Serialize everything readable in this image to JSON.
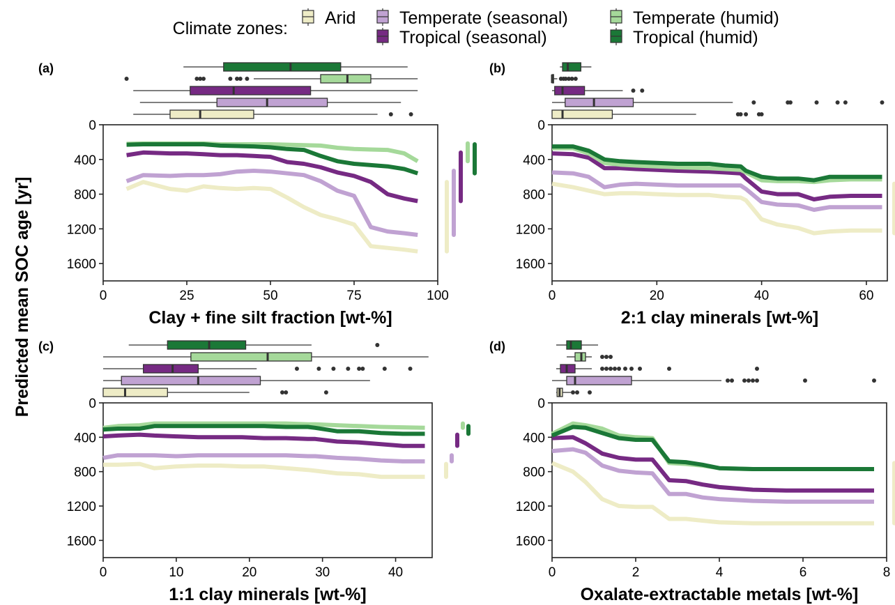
{
  "legend": {
    "title": "Climate zones:",
    "items": [
      {
        "key": "arid",
        "label": "Arid",
        "color": "#eeecc6"
      },
      {
        "key": "temperate_seasonal",
        "label": "Temperate (seasonal)",
        "color": "#c0a2d2"
      },
      {
        "key": "temperate_humid",
        "label": "Temperate (humid)",
        "color": "#a5d99a"
      },
      {
        "key": "tropical_seasonal",
        "label": "Tropical (seasonal)",
        "color": "#762a83"
      },
      {
        "key": "tropical_humid",
        "label": "Tropical (humid)",
        "color": "#1b7837"
      }
    ]
  },
  "shared_ylabel": "Predicted mean SOC age [yr]",
  "chart_data": [
    {
      "type": "line",
      "panel": "(a)",
      "xlabel": "Clay + fine silt fraction [wt-%]",
      "ylabel": "Predicted mean SOC age [yr]",
      "xlim": [
        0,
        100
      ],
      "ylim": [
        1800,
        0
      ],
      "y_inverted": true,
      "xticks": [
        "0",
        "25",
        "50",
        "75",
        "100"
      ],
      "yticks": [
        "0",
        "400",
        "800",
        "1200",
        "1600"
      ],
      "x": [
        7,
        12,
        20,
        25,
        30,
        35,
        40,
        45,
        50,
        55,
        60,
        65,
        70,
        75,
        80,
        85,
        90,
        94
      ],
      "series": [
        {
          "name": "Arid",
          "values": [
            740,
            660,
            740,
            760,
            710,
            730,
            740,
            730,
            740,
            840,
            950,
            1040,
            1090,
            1150,
            1400,
            1420,
            1440,
            1460
          ]
        },
        {
          "name": "Temperate (seasonal)",
          "values": [
            650,
            580,
            590,
            580,
            580,
            570,
            540,
            530,
            540,
            560,
            580,
            650,
            760,
            820,
            1180,
            1230,
            1250,
            1270
          ]
        },
        {
          "name": "Temperate (humid)",
          "values": [
            220,
            215,
            215,
            215,
            215,
            225,
            225,
            225,
            225,
            230,
            235,
            240,
            265,
            280,
            285,
            290,
            330,
            420
          ]
        },
        {
          "name": "Tropical (seasonal)",
          "values": [
            350,
            320,
            330,
            330,
            340,
            350,
            350,
            360,
            370,
            430,
            450,
            490,
            550,
            590,
            660,
            800,
            850,
            880
          ]
        },
        {
          "name": "Tropical (humid)",
          "values": [
            230,
            225,
            225,
            225,
            225,
            240,
            245,
            250,
            260,
            280,
            290,
            360,
            420,
            450,
            465,
            480,
            510,
            560
          ]
        }
      ],
      "boxes": [
        {
          "name": "Tropical (humid)",
          "whisker_lo": 24,
          "q1": 36,
          "median": 56,
          "q3": 71,
          "whisker_hi": 91,
          "outliers": []
        },
        {
          "name": "Temperate (humid)",
          "whisker_lo": 45,
          "q1": 65,
          "median": 73,
          "q3": 80,
          "whisker_hi": 94,
          "outliers": [
            7,
            28,
            29,
            30,
            38,
            40,
            41,
            43
          ]
        },
        {
          "name": "Tropical (seasonal)",
          "whisker_lo": 9,
          "q1": 26,
          "median": 39,
          "q3": 62,
          "whisker_hi": 94,
          "outliers": []
        },
        {
          "name": "Temperate (seasonal)",
          "whisker_lo": 11,
          "q1": 34,
          "median": 49,
          "q3": 67,
          "whisker_hi": 89,
          "outliers": []
        },
        {
          "name": "Arid",
          "whisker_lo": 9,
          "q1": 20,
          "median": 29,
          "q3": 45,
          "whisker_hi": 82,
          "outliers": [
            86,
            92
          ]
        }
      ],
      "range_bars": [
        {
          "name": "Arid",
          "from": 660,
          "to": 1460
        },
        {
          "name": "Temperate (seasonal)",
          "from": 530,
          "to": 1270
        },
        {
          "name": "Tropical (seasonal)",
          "from": 320,
          "to": 880
        },
        {
          "name": "Temperate (humid)",
          "from": 215,
          "to": 420
        },
        {
          "name": "Tropical (humid)",
          "from": 225,
          "to": 560
        }
      ]
    },
    {
      "type": "line",
      "panel": "(b)",
      "xlabel": "2:1 clay minerals [wt-%]",
      "ylabel": "",
      "xlim": [
        0,
        64
      ],
      "ylim": [
        1800,
        0
      ],
      "y_inverted": true,
      "xticks": [
        "0",
        "20",
        "40",
        "60"
      ],
      "yticks": [
        "0",
        "400",
        "800",
        "1200",
        "1600"
      ],
      "x": [
        0,
        4,
        7,
        10,
        13,
        16,
        20,
        24,
        30,
        33,
        36,
        37,
        40,
        43,
        47,
        50,
        53,
        57,
        60,
        63
      ],
      "series": [
        {
          "name": "Arid",
          "values": [
            680,
            720,
            760,
            800,
            790,
            790,
            800,
            810,
            810,
            830,
            840,
            870,
            1090,
            1150,
            1190,
            1250,
            1230,
            1220,
            1220,
            1220
          ]
        },
        {
          "name": "Temperate (seasonal)",
          "values": [
            550,
            560,
            600,
            720,
            690,
            680,
            690,
            700,
            700,
            700,
            700,
            740,
            890,
            920,
            930,
            980,
            950,
            950,
            950,
            950
          ]
        },
        {
          "name": "Temperate (humid)",
          "values": [
            270,
            270,
            330,
            440,
            460,
            470,
            480,
            490,
            500,
            510,
            520,
            550,
            640,
            650,
            650,
            660,
            640,
            630,
            630,
            630
          ]
        },
        {
          "name": "Tropical (seasonal)",
          "values": [
            330,
            340,
            380,
            500,
            500,
            510,
            520,
            530,
            540,
            550,
            560,
            620,
            770,
            800,
            800,
            860,
            830,
            820,
            820,
            820
          ]
        },
        {
          "name": "Tropical (humid)",
          "values": [
            250,
            250,
            300,
            400,
            420,
            430,
            440,
            450,
            450,
            470,
            480,
            530,
            600,
            620,
            620,
            640,
            600,
            600,
            600,
            600
          ]
        }
      ],
      "boxes": [
        {
          "name": "Tropical (humid)",
          "whisker_lo": 1.5,
          "q1": 2,
          "median": 3,
          "q3": 5.5,
          "whisker_hi": 7.5,
          "outliers": []
        },
        {
          "name": "Temperate (humid)",
          "whisker_lo": 0,
          "q1": 0,
          "median": 0,
          "q3": 0.3,
          "whisker_hi": 1,
          "outliers": [
            1.7,
            2.2,
            2.6,
            3.2,
            3.8,
            4.5
          ]
        },
        {
          "name": "Tropical (seasonal)",
          "whisker_lo": 0,
          "q1": 0.5,
          "median": 2,
          "q3": 6.2,
          "whisker_hi": 13.5,
          "outliers": [
            15.5,
            17.2
          ]
        },
        {
          "name": "Temperate (seasonal)",
          "whisker_lo": 0,
          "q1": 2.5,
          "median": 8,
          "q3": 15.5,
          "whisker_hi": 34.5,
          "outliers": [
            38.5,
            45,
            45.5,
            50.5,
            54.5,
            56,
            63
          ]
        },
        {
          "name": "Arid",
          "whisker_lo": 0,
          "q1": 0,
          "median": 2,
          "q3": 11.5,
          "whisker_hi": 27.5,
          "outliers": [
            35.5,
            36,
            37,
            39.5,
            40
          ]
        }
      ],
      "range_bars": [
        {
          "name": "Arid",
          "from": 680,
          "to": 1250
        }
      ]
    },
    {
      "type": "line",
      "panel": "(c)",
      "xlabel": "1:1 clay minerals [wt-%]",
      "ylabel": "",
      "xlim": [
        0,
        45
      ],
      "ylim": [
        1800,
        0
      ],
      "y_inverted": true,
      "xticks": [
        "0",
        "10",
        "20",
        "30",
        "40"
      ],
      "yticks": [
        "0",
        "400",
        "800",
        "1200",
        "1600"
      ],
      "x": [
        0,
        2,
        5,
        7,
        10,
        13,
        16,
        19,
        22,
        25,
        28,
        29,
        32,
        35,
        38,
        41,
        44
      ],
      "series": [
        {
          "name": "Arid",
          "values": [
            720,
            720,
            710,
            760,
            740,
            730,
            730,
            740,
            740,
            760,
            780,
            790,
            820,
            830,
            860,
            860,
            860
          ]
        },
        {
          "name": "Temperate (seasonal)",
          "values": [
            640,
            610,
            610,
            610,
            620,
            610,
            610,
            610,
            610,
            610,
            620,
            620,
            640,
            650,
            670,
            680,
            680
          ]
        },
        {
          "name": "Temperate (humid)",
          "values": [
            290,
            270,
            260,
            240,
            240,
            240,
            240,
            240,
            240,
            240,
            250,
            250,
            260,
            270,
            280,
            285,
            290
          ]
        },
        {
          "name": "Tropical (seasonal)",
          "values": [
            390,
            380,
            370,
            380,
            390,
            400,
            400,
            400,
            410,
            410,
            420,
            420,
            450,
            460,
            480,
            500,
            500
          ]
        },
        {
          "name": "Tropical (humid)",
          "values": [
            310,
            300,
            300,
            270,
            270,
            270,
            270,
            270,
            270,
            280,
            280,
            290,
            330,
            330,
            350,
            360,
            360
          ]
        }
      ],
      "boxes": [
        {
          "name": "Tropical (humid)",
          "whisker_lo": 3.5,
          "q1": 8.8,
          "median": 14.5,
          "q3": 19.5,
          "whisker_hi": 28.5,
          "outliers": [
            37.5
          ]
        },
        {
          "name": "Temperate (humid)",
          "whisker_lo": 0,
          "q1": 12,
          "median": 22.5,
          "q3": 28.5,
          "whisker_hi": 44.5,
          "outliers": []
        },
        {
          "name": "Tropical (seasonal)",
          "whisker_lo": 0,
          "q1": 5.5,
          "median": 9.5,
          "q3": 13,
          "whisker_hi": 21,
          "outliers": [
            26.5,
            29.5,
            31.5,
            33.5,
            35,
            35.5,
            38.5,
            42
          ]
        },
        {
          "name": "Temperate (seasonal)",
          "whisker_lo": 0,
          "q1": 2.5,
          "median": 13,
          "q3": 21.5,
          "whisker_hi": 36.5,
          "outliers": []
        },
        {
          "name": "Arid",
          "whisker_lo": 0,
          "q1": 0,
          "median": 3,
          "q3": 8.8,
          "whisker_hi": 20,
          "outliers": [
            24.5,
            25,
            30.5
          ]
        }
      ],
      "range_bars": [
        {
          "name": "Arid",
          "from": 710,
          "to": 860
        },
        {
          "name": "Temperate (seasonal)",
          "from": 610,
          "to": 680
        },
        {
          "name": "Tropical (seasonal)",
          "from": 370,
          "to": 500
        },
        {
          "name": "Temperate (humid)",
          "from": 240,
          "to": 290
        },
        {
          "name": "Tropical (humid)",
          "from": 270,
          "to": 360
        }
      ]
    },
    {
      "type": "line",
      "panel": "(d)",
      "xlabel": "Oxalate-extractable metals [wt-%]",
      "ylabel": "",
      "xlim": [
        0,
        8
      ],
      "ylim": [
        1800,
        0
      ],
      "y_inverted": true,
      "xticks": [
        "0",
        "2",
        "4",
        "6",
        "8"
      ],
      "yticks": [
        "0",
        "400",
        "800",
        "1200",
        "1600"
      ],
      "x": [
        0,
        0.5,
        0.8,
        1.2,
        1.6,
        2.0,
        2.4,
        2.8,
        3.2,
        3.6,
        4.0,
        4.8,
        5.6,
        6.4,
        7.2,
        7.7
      ],
      "series": [
        {
          "name": "Arid",
          "values": [
            700,
            800,
            920,
            1120,
            1200,
            1210,
            1210,
            1350,
            1350,
            1370,
            1390,
            1400,
            1400,
            1400,
            1400,
            1400
          ]
        },
        {
          "name": "Temperate (seasonal)",
          "values": [
            560,
            540,
            580,
            730,
            790,
            810,
            820,
            1060,
            1060,
            1100,
            1120,
            1140,
            1150,
            1150,
            1150,
            1150
          ]
        },
        {
          "name": "Temperate (humid)",
          "values": [
            360,
            240,
            260,
            300,
            380,
            400,
            410,
            700,
            710,
            730,
            760,
            770,
            770,
            770,
            770,
            770
          ]
        },
        {
          "name": "Tropical (seasonal)",
          "values": [
            410,
            400,
            470,
            590,
            640,
            660,
            660,
            900,
            910,
            950,
            980,
            1010,
            1020,
            1020,
            1020,
            1020
          ]
        },
        {
          "name": "Tropical (humid)",
          "values": [
            380,
            280,
            290,
            350,
            410,
            430,
            430,
            680,
            690,
            720,
            760,
            770,
            770,
            770,
            770,
            770
          ]
        }
      ],
      "boxes": [
        {
          "name": "Tropical (humid)",
          "whisker_lo": 0.1,
          "q1": 0.35,
          "median": 0.45,
          "q3": 0.7,
          "whisker_hi": 1.1,
          "outliers": []
        },
        {
          "name": "Temperate (humid)",
          "whisker_lo": 0.35,
          "q1": 0.55,
          "median": 0.7,
          "q3": 0.8,
          "whisker_hi": 0.95,
          "outliers": [
            1.2,
            1.3,
            1.4
          ]
        },
        {
          "name": "Tropical (seasonal)",
          "whisker_lo": 0.1,
          "q1": 0.2,
          "median": 0.35,
          "q3": 0.55,
          "whisker_hi": 0.95,
          "outliers": [
            1.2,
            1.3,
            1.4,
            1.5,
            1.6,
            1.75,
            1.9,
            2.1,
            2.8,
            4.9
          ]
        },
        {
          "name": "Temperate (seasonal)",
          "whisker_lo": 0,
          "q1": 0.35,
          "median": 0.55,
          "q3": 1.9,
          "whisker_hi": 4.05,
          "outliers": [
            4.2,
            4.3,
            4.6,
            4.7,
            4.8,
            4.9,
            6.05,
            7.7
          ]
        },
        {
          "name": "Arid",
          "whisker_lo": 0.1,
          "q1": 0.12,
          "median": 0.18,
          "q3": 0.25,
          "whisker_hi": 0.45,
          "outliers": [
            0.5,
            0.6,
            0.9
          ]
        }
      ],
      "range_bars": [
        {
          "name": "Arid",
          "from": 700,
          "to": 1400
        }
      ]
    }
  ]
}
